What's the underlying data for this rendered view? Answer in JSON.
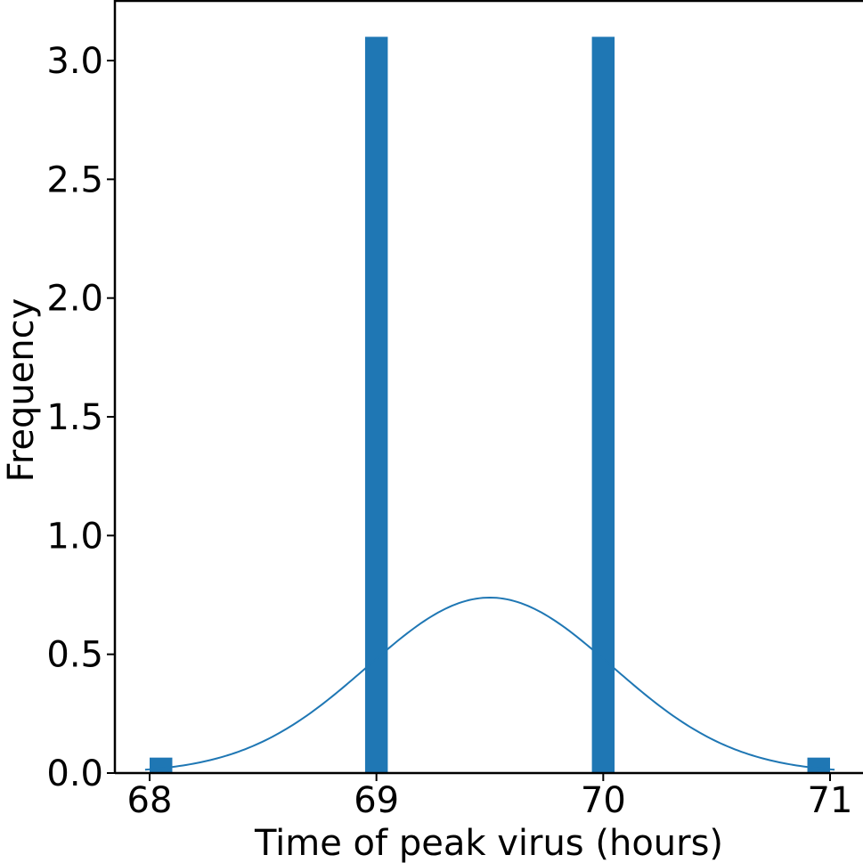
{
  "chart_data": {
    "type": "bar",
    "title": "",
    "xlabel": "Time of peak virus (hours)",
    "ylabel": "Frequency",
    "xlim": [
      67.85,
      71.15
    ],
    "ylim": [
      0,
      3.25
    ],
    "bar_color": "#1f77b4",
    "bin_width": 0.1,
    "bars": [
      {
        "x_start": 68.0,
        "x_end": 68.1,
        "value": 0.065
      },
      {
        "x_start": 68.95,
        "x_end": 69.05,
        "value": 3.1
      },
      {
        "x_start": 69.95,
        "x_end": 70.05,
        "value": 3.1
      },
      {
        "x_start": 70.9,
        "x_end": 71.0,
        "value": 0.065
      }
    ],
    "kde_curve": {
      "color": "#1f77b4",
      "mean": 69.5,
      "std": 0.54,
      "x_range": [
        67.98,
        71.02
      ]
    },
    "xticks": [
      {
        "value": 68,
        "label": "68"
      },
      {
        "value": 69,
        "label": "69"
      },
      {
        "value": 70,
        "label": "70"
      },
      {
        "value": 71,
        "label": "71"
      }
    ],
    "yticks": [
      {
        "value": 0.0,
        "label": "0.0"
      },
      {
        "value": 0.5,
        "label": "0.5"
      },
      {
        "value": 1.0,
        "label": "1.0"
      },
      {
        "value": 1.5,
        "label": "1.5"
      },
      {
        "value": 2.0,
        "label": "2.0"
      },
      {
        "value": 2.5,
        "label": "2.5"
      },
      {
        "value": 3.0,
        "label": "3.0"
      }
    ],
    "grid": false,
    "spines": [
      "left",
      "bottom",
      "top"
    ]
  }
}
